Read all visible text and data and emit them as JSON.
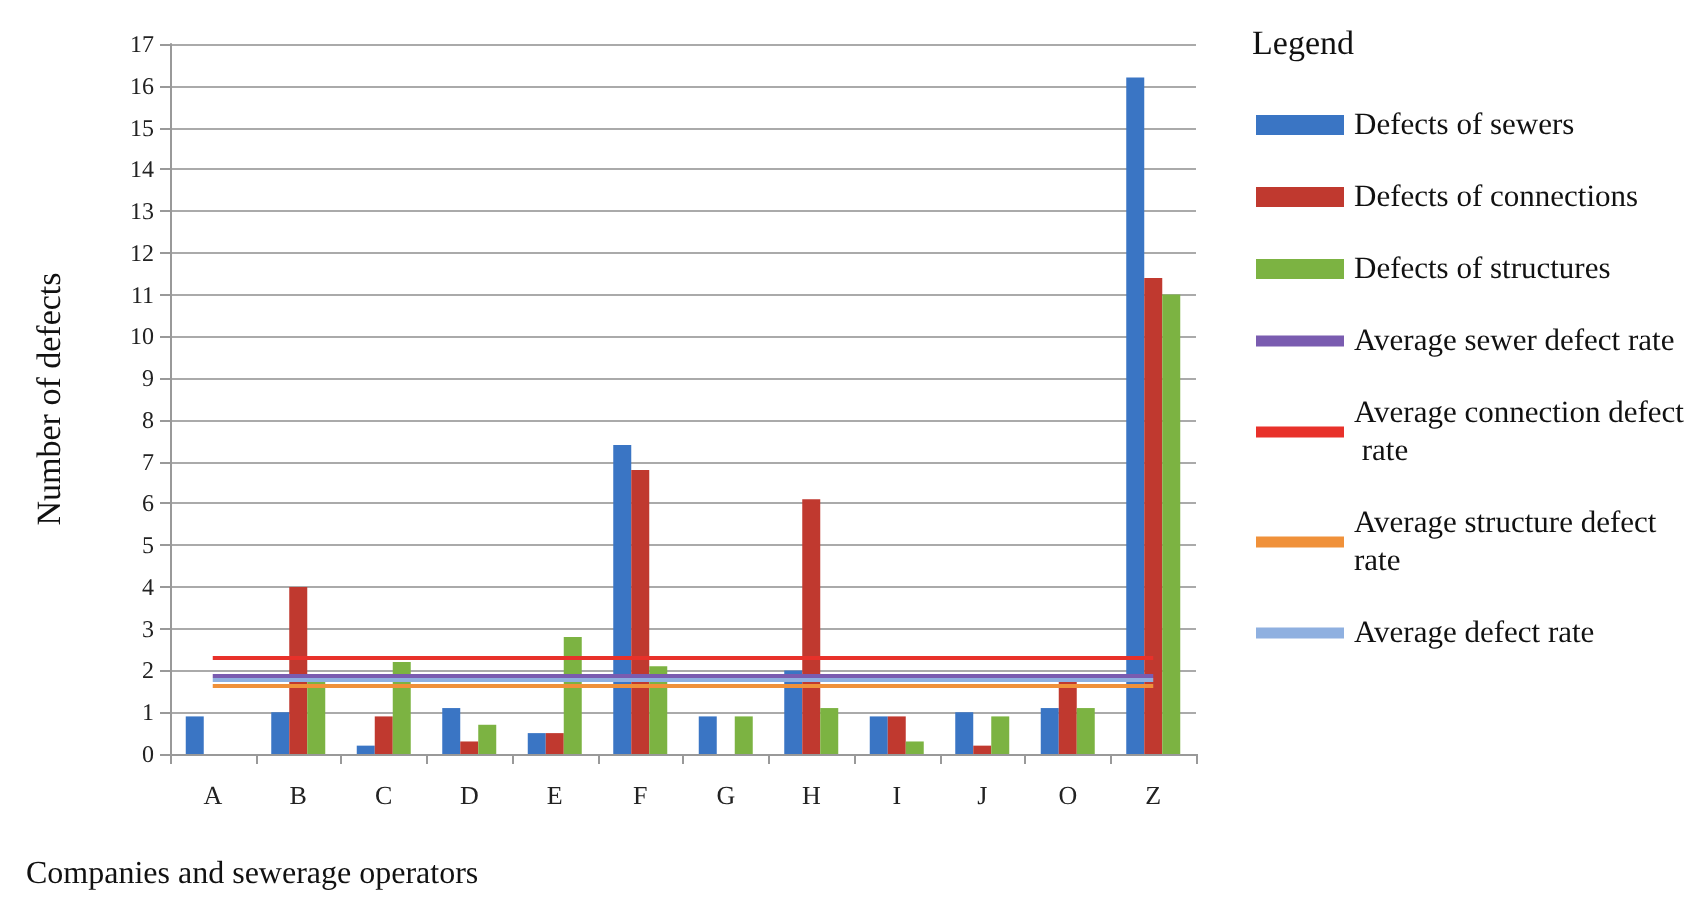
{
  "chart_data": {
    "type": "bar",
    "xlabel": "Companies and sewerage operators",
    "ylabel": "Number of defects",
    "legend_title": "Legend",
    "categories": [
      "A",
      "B",
      "C",
      "D",
      "E",
      "F",
      "G",
      "H",
      "I",
      "J",
      "O",
      "Z"
    ],
    "series": [
      {
        "name": "Defects of sewers",
        "color": "#3a75c4",
        "values": [
          0.9,
          1.0,
          0.2,
          1.1,
          0.5,
          7.4,
          0.9,
          2.0,
          0.9,
          1.0,
          1.1,
          16.2
        ]
      },
      {
        "name": "Defects of connections",
        "color": "#c0392f",
        "values": [
          0,
          4.0,
          0.9,
          0.3,
          0.5,
          6.8,
          0,
          6.1,
          0.9,
          0.2,
          1.8,
          11.4
        ]
      },
      {
        "name": "Defects of structures",
        "color": "#7cb342",
        "values": [
          0,
          1.8,
          2.2,
          0.7,
          2.8,
          2.1,
          0.9,
          1.1,
          0.3,
          0.9,
          1.1,
          11.0
        ]
      }
    ],
    "ref_lines": [
      {
        "axis": "y",
        "value": 1.9,
        "label": "Average sewer defect rate",
        "color": "#7a5cb0"
      },
      {
        "axis": "y",
        "value": 2.3,
        "label": "Average connection defect rate",
        "color": "#e8312a"
      },
      {
        "axis": "y",
        "value": 1.65,
        "label": "Average structure defect rate",
        "color": "#f0913a"
      },
      {
        "axis": "y",
        "value": 1.8,
        "label": "Average defect rate",
        "color": "#8fb0e0"
      }
    ],
    "ylim": [
      0,
      17
    ],
    "yticks": [
      0,
      1,
      2,
      3,
      4,
      5,
      6,
      7,
      8,
      9,
      10,
      11,
      12,
      13,
      14,
      15,
      16,
      17
    ],
    "grid": "y",
    "legend": "right"
  }
}
